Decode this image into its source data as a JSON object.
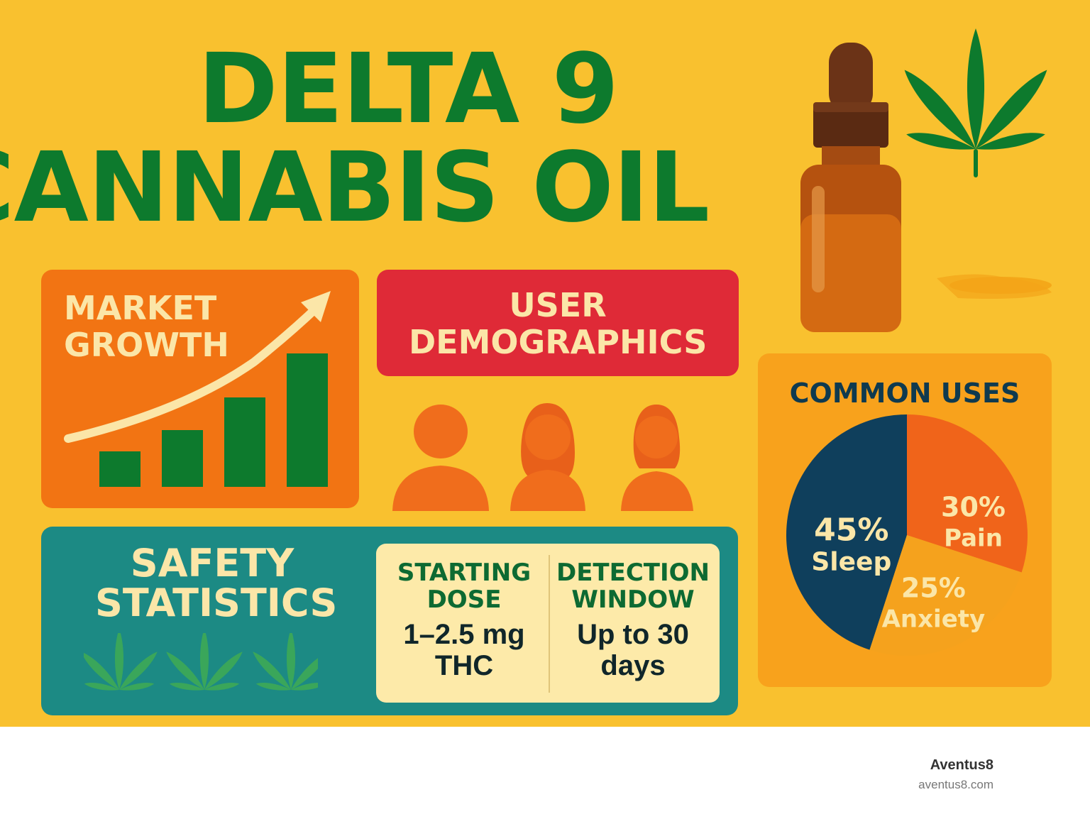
{
  "title": {
    "line1": "DELTA 9",
    "line2": "CANNABIS OIL"
  },
  "market_growth": {
    "label": "MARKET GROWTH",
    "icon": "growth-bar-chart-icon"
  },
  "user_demographics": {
    "label": "USER DEMOGRAPHICS",
    "icon": "people-icon"
  },
  "safety": {
    "label": "SAFETY STATISTICS",
    "starting_dose": {
      "heading": "STARTING DOSE",
      "value": "1–2.5 mg THC"
    },
    "detection_window": {
      "heading": "DETECTION WINDOW",
      "value": "Up to 30 days"
    }
  },
  "common_uses": {
    "label": "COMMON USES",
    "chart_data": {
      "type": "pie",
      "title": "COMMON USES",
      "slices": [
        {
          "label": "Sleep",
          "percent_text": "45%",
          "value": 45,
          "color": "#0f3f5c"
        },
        {
          "label": "Pain",
          "percent_text": "30%",
          "value": 30,
          "color": "#f0641a"
        },
        {
          "label": "Anxiety",
          "percent_text": "25%",
          "value": 25,
          "color": "#f5a21d"
        }
      ]
    }
  },
  "colors": {
    "background": "#f9c12f",
    "title_green": "#0d7a2d",
    "market_panel": "#f27413",
    "demographics_panel": "#df2a37",
    "safety_panel": "#1c8a84",
    "uses_panel": "#f8a21c"
  },
  "brand": {
    "name": "Aventus8",
    "url": "aventus8.com"
  }
}
